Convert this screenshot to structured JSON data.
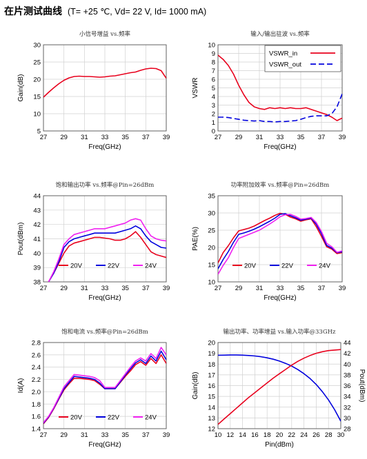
{
  "header": {
    "title": "在片测试曲线",
    "conditions": "(T= +25 ℃, Vd= 22 V, Id= 1000 mA)"
  },
  "chart_data": [
    {
      "type": "line",
      "title": "小信号增益 vs.频率",
      "xlabel": "Freq(GHz)",
      "ylabel": "Gain(dB)",
      "xlim": [
        27,
        39
      ],
      "ylim": [
        5,
        30
      ],
      "xticks": [
        27,
        29,
        31,
        33,
        35,
        37,
        39
      ],
      "yticks": [
        5,
        10,
        15,
        20,
        25,
        30
      ],
      "grid": true,
      "legend": "none",
      "series": [
        {
          "color": "#e8001c",
          "dash": "",
          "x": [
            27,
            27.5,
            28,
            28.5,
            29,
            29.5,
            30,
            30.5,
            31,
            31.5,
            32,
            32.5,
            33,
            33.5,
            34,
            34.5,
            35,
            35.5,
            36,
            36.5,
            37,
            37.5,
            38,
            38.5,
            39
          ],
          "y": [
            14.8,
            16.2,
            17.5,
            18.7,
            19.7,
            20.4,
            20.8,
            20.9,
            20.8,
            20.8,
            20.7,
            20.6,
            20.7,
            20.9,
            21.0,
            21.3,
            21.6,
            21.9,
            22.1,
            22.6,
            23.0,
            23.2,
            23.1,
            22.5,
            20.3
          ]
        }
      ]
    },
    {
      "type": "line",
      "title": "输入/输出驻波 vs.频率",
      "xlabel": "Freq(GHz)",
      "ylabel": "VSWR",
      "xlim": [
        27,
        39
      ],
      "ylim": [
        0,
        10
      ],
      "xticks": [
        27,
        29,
        31,
        33,
        35,
        37,
        39
      ],
      "yticks": [
        0,
        1,
        2,
        3,
        4,
        5,
        6,
        7,
        8,
        9,
        10
      ],
      "grid": true,
      "legend": "top-right",
      "series": [
        {
          "name": "VSWR_in",
          "color": "#e8001c",
          "dash": "",
          "x": [
            27,
            27.5,
            28,
            28.5,
            29,
            29.5,
            30,
            30.5,
            31,
            31.5,
            32,
            32.5,
            33,
            33.5,
            34,
            34.5,
            35,
            35.5,
            36,
            36.5,
            37,
            37.5,
            38,
            38.5,
            39
          ],
          "y": [
            8.8,
            8.3,
            7.6,
            6.6,
            5.3,
            4.2,
            3.3,
            2.8,
            2.6,
            2.5,
            2.7,
            2.6,
            2.7,
            2.6,
            2.7,
            2.6,
            2.6,
            2.7,
            2.5,
            2.3,
            2.1,
            1.9,
            1.6,
            1.2,
            1.5
          ]
        },
        {
          "name": "VSWR_out",
          "color": "#0000dd",
          "dash": "8,4",
          "x": [
            27,
            27.5,
            28,
            28.5,
            29,
            29.5,
            30,
            30.5,
            31,
            31.5,
            32,
            32.5,
            33,
            33.5,
            34,
            34.5,
            35,
            35.5,
            36,
            36.5,
            37,
            37.5,
            38,
            38.5,
            39
          ],
          "y": [
            1.6,
            1.6,
            1.55,
            1.45,
            1.35,
            1.25,
            1.2,
            1.15,
            1.2,
            1.1,
            1.1,
            1.05,
            1.1,
            1.1,
            1.15,
            1.2,
            1.35,
            1.55,
            1.7,
            1.75,
            1.75,
            1.75,
            2.0,
            2.8,
            4.3
          ]
        }
      ]
    },
    {
      "type": "line",
      "title": "饱和输出功率 vs.频率@Pin=26dBm",
      "xlabel": "Freq(GHz)",
      "ylabel": "Pout(dBm)",
      "xlim": [
        27,
        39
      ],
      "ylim": [
        38,
        44
      ],
      "xticks": [
        27,
        29,
        31,
        33,
        35,
        37,
        39
      ],
      "yticks": [
        38,
        39,
        40,
        41,
        42,
        43,
        44
      ],
      "grid": true,
      "legend": "bottom-left",
      "series": [
        {
          "name": "20V",
          "color": "#e8001c",
          "dash": "",
          "x": [
            27.5,
            28,
            28.5,
            29,
            29.5,
            30,
            30.5,
            31,
            31.5,
            32,
            32.5,
            33,
            33.5,
            34,
            34.5,
            35,
            35.5,
            36,
            36.5,
            37,
            37.5,
            38,
            38.5,
            39
          ],
          "y": [
            38.0,
            38.6,
            39.3,
            40.0,
            40.5,
            40.7,
            40.8,
            40.9,
            41.0,
            41.1,
            41.1,
            41.05,
            41.0,
            40.9,
            40.9,
            41.0,
            41.2,
            41.5,
            41.1,
            40.6,
            40.1,
            39.9,
            39.8,
            39.7
          ]
        },
        {
          "name": "22V",
          "color": "#0000dd",
          "dash": "",
          "x": [
            27.5,
            28,
            28.5,
            29,
            29.5,
            30,
            30.5,
            31,
            31.5,
            32,
            32.5,
            33,
            33.5,
            34,
            34.5,
            35,
            35.5,
            36,
            36.5,
            37,
            37.5,
            38,
            38.5,
            39
          ],
          "y": [
            38.0,
            38.6,
            39.4,
            40.4,
            40.8,
            41.0,
            41.1,
            41.2,
            41.3,
            41.4,
            41.4,
            41.4,
            41.4,
            41.4,
            41.5,
            41.6,
            41.7,
            41.9,
            41.7,
            41.2,
            40.8,
            40.6,
            40.4,
            40.35
          ]
        },
        {
          "name": "24V",
          "color": "#f020f0",
          "dash": "",
          "x": [
            27.5,
            28,
            28.5,
            29,
            29.5,
            30,
            30.5,
            31,
            31.5,
            32,
            32.5,
            33,
            33.5,
            34,
            34.5,
            35,
            35.5,
            36,
            36.5,
            37,
            37.5,
            38,
            38.5,
            39
          ],
          "y": [
            38.0,
            38.7,
            39.6,
            40.6,
            41.0,
            41.3,
            41.4,
            41.5,
            41.6,
            41.7,
            41.7,
            41.7,
            41.8,
            41.9,
            42.0,
            42.1,
            42.3,
            42.4,
            42.3,
            41.7,
            41.2,
            41.0,
            40.9,
            40.85
          ]
        }
      ]
    },
    {
      "type": "line",
      "title": "功率附加效率 vs.频率@Pin=26dBm",
      "xlabel": "Freq(GHz)",
      "ylabel": "PAE(%)",
      "xlim": [
        27,
        39
      ],
      "ylim": [
        10,
        35
      ],
      "xticks": [
        27,
        29,
        31,
        33,
        35,
        37,
        39
      ],
      "yticks": [
        10,
        15,
        20,
        25,
        30,
        35
      ],
      "grid": true,
      "legend": "bottom-left",
      "series": [
        {
          "name": "20V",
          "color": "#e8001c",
          "dash": "",
          "x": [
            27,
            27.5,
            28,
            28.5,
            29,
            29.5,
            30,
            30.5,
            31,
            31.5,
            32,
            32.5,
            33,
            33.5,
            34,
            34.5,
            35,
            35.5,
            36,
            36.5,
            37,
            37.5,
            38,
            38.5,
            39
          ],
          "y": [
            15.5,
            18.5,
            20.5,
            22.8,
            24.8,
            25.2,
            25.6,
            26.2,
            27.0,
            27.8,
            28.5,
            29.3,
            29.9,
            29.6,
            28.8,
            28.3,
            27.6,
            28.0,
            28.3,
            26.0,
            23.2,
            20.2,
            19.5,
            18.2,
            18.5
          ]
        },
        {
          "name": "22V",
          "color": "#0000dd",
          "dash": "",
          "x": [
            27,
            27.5,
            28,
            28.5,
            29,
            29.5,
            30,
            30.5,
            31,
            31.5,
            32,
            32.5,
            33,
            33.5,
            34,
            34.5,
            35,
            35.5,
            36,
            36.5,
            37,
            37.5,
            38,
            38.5,
            39
          ],
          "y": [
            13.8,
            16.5,
            18.8,
            21.5,
            23.8,
            24.2,
            24.7,
            25.3,
            26.0,
            26.8,
            27.6,
            28.5,
            29.6,
            29.8,
            29.2,
            28.6,
            27.9,
            28.2,
            28.5,
            26.7,
            24.0,
            20.6,
            19.8,
            18.5,
            18.7
          ]
        },
        {
          "name": "24V",
          "color": "#f020f0",
          "dash": "",
          "x": [
            27,
            27.5,
            28,
            28.5,
            29,
            29.5,
            30,
            30.5,
            31,
            31.5,
            32,
            32.5,
            33,
            33.5,
            34,
            34.5,
            35,
            35.5,
            36,
            36.5,
            37,
            37.5,
            38,
            38.5,
            39
          ],
          "y": [
            12.2,
            14.8,
            17.0,
            20.0,
            22.6,
            23.2,
            23.8,
            24.4,
            25.0,
            25.9,
            26.8,
            27.8,
            28.9,
            29.5,
            29.6,
            29.0,
            28.2,
            28.4,
            28.7,
            27.2,
            24.6,
            21.2,
            20.2,
            18.6,
            19.0
          ]
        }
      ]
    },
    {
      "type": "line",
      "title": "饱和电流 vs.频率@Pin=26dBm",
      "xlabel": "Freq(GHz)",
      "ylabel": "Id(A)",
      "xlim": [
        27,
        39
      ],
      "ylim": [
        1.4,
        2.8
      ],
      "xticks": [
        27,
        29,
        31,
        33,
        35,
        37,
        39
      ],
      "yticks": [
        1.4,
        1.6,
        1.8,
        2.0,
        2.2,
        2.4,
        2.6,
        2.8
      ],
      "grid": true,
      "legend": "bottom-left",
      "series": [
        {
          "name": "20V",
          "color": "#e8001c",
          "dash": "",
          "x": [
            27,
            27.5,
            28,
            28.5,
            29,
            29.5,
            30,
            30.5,
            31,
            31.5,
            32,
            32.5,
            33,
            33.5,
            34,
            34.5,
            35,
            35.5,
            36,
            36.5,
            37,
            37.5,
            38,
            38.5,
            39
          ],
          "y": [
            1.48,
            1.58,
            1.72,
            1.88,
            2.03,
            2.13,
            2.22,
            2.22,
            2.21,
            2.2,
            2.18,
            2.12,
            2.05,
            2.05,
            2.05,
            2.15,
            2.25,
            2.34,
            2.44,
            2.49,
            2.43,
            2.54,
            2.46,
            2.6,
            2.46
          ]
        },
        {
          "name": "22V",
          "color": "#0000dd",
          "dash": "",
          "x": [
            27,
            27.5,
            28,
            28.5,
            29,
            29.5,
            30,
            30.5,
            31,
            31.5,
            32,
            32.5,
            33,
            33.5,
            34,
            34.5,
            35,
            35.5,
            36,
            36.5,
            37,
            37.5,
            38,
            38.5,
            39
          ],
          "y": [
            1.49,
            1.59,
            1.73,
            1.89,
            2.05,
            2.15,
            2.25,
            2.24,
            2.23,
            2.22,
            2.2,
            2.14,
            2.05,
            2.05,
            2.05,
            2.16,
            2.27,
            2.37,
            2.47,
            2.52,
            2.46,
            2.58,
            2.5,
            2.66,
            2.52
          ]
        },
        {
          "name": "24V",
          "color": "#f020f0",
          "dash": "",
          "x": [
            27,
            27.5,
            28,
            28.5,
            29,
            29.5,
            30,
            30.5,
            31,
            31.5,
            32,
            32.5,
            33,
            33.5,
            34,
            34.5,
            35,
            35.5,
            36,
            36.5,
            37,
            37.5,
            38,
            38.5,
            39
          ],
          "y": [
            1.5,
            1.6,
            1.74,
            1.91,
            2.08,
            2.18,
            2.28,
            2.27,
            2.26,
            2.25,
            2.23,
            2.18,
            2.07,
            2.07,
            2.07,
            2.18,
            2.29,
            2.4,
            2.5,
            2.55,
            2.5,
            2.62,
            2.54,
            2.72,
            2.6
          ]
        }
      ]
    },
    {
      "type": "line",
      "title": "输出功率、功率增益 vs.输入功率@33GHz",
      "xlabel": "Pin(dBm)",
      "ylabel": "Gain(dB)",
      "y2label": "Pout(dBm)",
      "xlim": [
        10,
        30
      ],
      "ylim": [
        12,
        20
      ],
      "y2lim": [
        28,
        44
      ],
      "xticks": [
        10,
        12,
        14,
        16,
        18,
        20,
        22,
        24,
        26,
        28,
        30
      ],
      "yticks": [
        12,
        13,
        14,
        15,
        16,
        17,
        18,
        19,
        20
      ],
      "y2ticks": [
        28,
        30,
        32,
        34,
        36,
        38,
        40,
        42,
        44
      ],
      "grid": true,
      "legend": "none",
      "series": [
        {
          "color": "#0000dd",
          "dash": "",
          "axis": "left",
          "x": [
            10,
            11,
            12,
            13,
            14,
            15,
            16,
            17,
            18,
            19,
            20,
            21,
            22,
            23,
            24,
            25,
            26,
            27,
            28,
            29,
            30
          ],
          "y": [
            18.82,
            18.83,
            18.84,
            18.84,
            18.83,
            18.8,
            18.75,
            18.68,
            18.58,
            18.45,
            18.28,
            18.07,
            17.81,
            17.49,
            17.11,
            16.65,
            16.1,
            15.44,
            14.67,
            13.76,
            12.7
          ]
        },
        {
          "color": "#e8001c",
          "dash": "",
          "axis": "right",
          "x": [
            10,
            11,
            12,
            13,
            14,
            15,
            16,
            17,
            18,
            19,
            20,
            21,
            22,
            23,
            24,
            25,
            26,
            27,
            28,
            29,
            30
          ],
          "y": [
            28.8,
            29.8,
            30.8,
            31.8,
            32.8,
            33.8,
            34.7,
            35.6,
            36.5,
            37.4,
            38.2,
            39.0,
            39.8,
            40.5,
            41.1,
            41.6,
            42.0,
            42.3,
            42.5,
            42.6,
            42.7
          ]
        }
      ]
    }
  ]
}
